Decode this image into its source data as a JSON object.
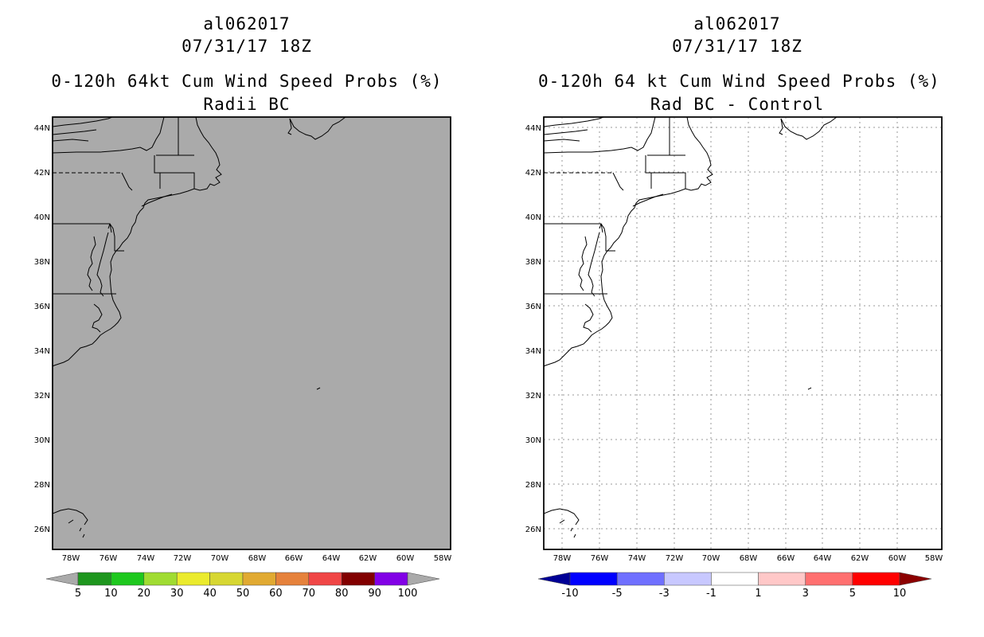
{
  "left_panel": {
    "storm_id": "al062017",
    "datetime": "07/31/17 18Z",
    "title": "0-120h 64kt Cum Wind Speed Probs (%)",
    "subtitle": "Radii BC",
    "map_fill": "#aaaaaa",
    "colorbar": {
      "labels": [
        "5",
        "10",
        "20",
        "30",
        "40",
        "50",
        "60",
        "70",
        "80",
        "90",
        "100"
      ],
      "colors": [
        "#1e961e",
        "#1ec81e",
        "#a0dc32",
        "#ebeb2d",
        "#d7d732",
        "#e1aa32",
        "#e6823c",
        "#f04646",
        "#820000",
        "#8200e6"
      ],
      "under_color": "#aaaaaa",
      "over_color": "#aaaaaa"
    }
  },
  "right_panel": {
    "storm_id": "al062017",
    "datetime": "07/31/17 18Z",
    "title": "0-120h 64 kt Cum Wind Speed Probs (%)",
    "subtitle": "Rad BC - Control",
    "map_fill": "#ffffff",
    "colorbar": {
      "labels": [
        "-10",
        "-5",
        "-3",
        "-1",
        "1",
        "3",
        "5",
        "10"
      ],
      "colors": [
        "#0000ff",
        "#7070ff",
        "#c8c8ff",
        "#ffffff",
        "#ffc8c8",
        "#ff7070",
        "#ff0000"
      ],
      "under_color": "#000096",
      "over_color": "#8c0000"
    }
  },
  "axes": {
    "lat_labels": [
      "44N",
      "42N",
      "40N",
      "38N",
      "36N",
      "34N",
      "32N",
      "30N",
      "28N",
      "26N"
    ],
    "lon_labels": [
      "78W",
      "76W",
      "74W",
      "72W",
      "70W",
      "68W",
      "66W",
      "64W",
      "62W",
      "60W",
      "58W"
    ]
  }
}
